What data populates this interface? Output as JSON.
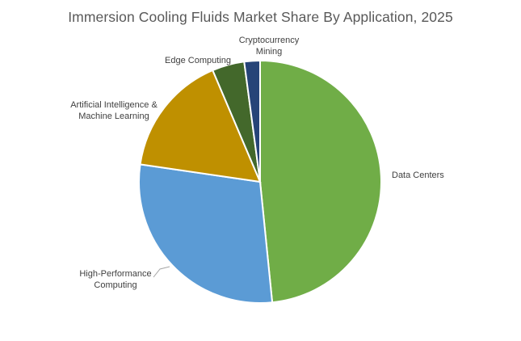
{
  "chart_data": {
    "type": "pie",
    "title": "Immersion Cooling Fluids Market Share By Application, 2025",
    "start_angle_deg": 0,
    "direction": "clockwise",
    "slices": [
      {
        "label": "Data Centers",
        "value": 48.4,
        "color": "#70AD47"
      },
      {
        "label": "High-Performance Computing",
        "value": 28.9,
        "color": "#5B9BD5"
      },
      {
        "label": "Artificial Intelligence & Machine Learning",
        "value": 16.3,
        "color": "#BF9000"
      },
      {
        "label": "Edge Computing",
        "value": 4.3,
        "color": "#43682B"
      },
      {
        "label": "Cryptocurrency Mining",
        "value": 2.1,
        "color": "#264478"
      }
    ],
    "legend": "none",
    "data_labels": "category names outside"
  }
}
